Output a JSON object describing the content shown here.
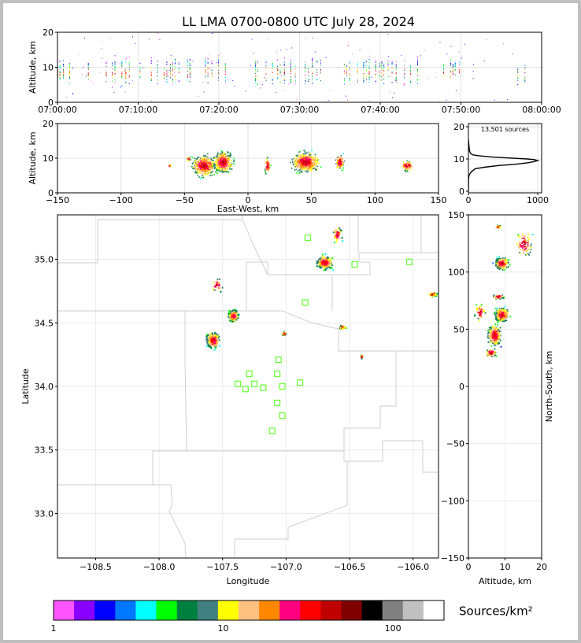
{
  "title": "LL LMA 0700-0800 UTC July 28, 2024",
  "colors": {
    "station": "#66ff33",
    "county": "#cccccc",
    "axis": "#000000",
    "grid": "#e6e6e6"
  },
  "chart_data": [
    {
      "type": "scatter",
      "panel": "time-altitude",
      "title": "LL LMA 0700-0800 UTC July 28, 2024",
      "xlabel": "",
      "ylabel": "Altitude, km",
      "xlim": [
        "07:00:00",
        "08:00:00"
      ],
      "ylim": [
        0,
        20
      ],
      "xticks": [
        "07:00:00",
        "07:10:00",
        "07:20:00",
        "07:30:00",
        "07:40:00",
        "07:50:00",
        "08:00:00"
      ],
      "yticks": [
        0,
        10,
        20
      ],
      "clusters": [
        {
          "t": [
            0,
            4
          ],
          "alt": [
            5,
            12
          ]
        },
        {
          "t": [
            6,
            15
          ],
          "alt": [
            4,
            13
          ]
        },
        {
          "t": [
            15,
            21
          ],
          "alt": [
            5,
            13
          ]
        },
        {
          "t": [
            24.5,
            33
          ],
          "alt": [
            4,
            13
          ]
        },
        {
          "t": [
            35.5,
            45.5
          ],
          "alt": [
            4,
            13
          ]
        },
        {
          "t": [
            47.8,
            50.5
          ],
          "alt": [
            7,
            12
          ]
        },
        {
          "t": [
            57,
            58
          ],
          "alt": [
            4,
            11
          ]
        }
      ]
    },
    {
      "type": "scatter",
      "panel": "east-west-altitude",
      "xlabel": "East-West, km",
      "ylabel": "Altitude, km",
      "xlim": [
        -150,
        150
      ],
      "ylim": [
        0,
        20
      ],
      "xticks": [
        -150,
        -100,
        -50,
        0,
        50,
        100,
        150
      ],
      "yticks": [
        0,
        10,
        20
      ],
      "clusters": [
        {
          "x": -35,
          "alt": 8,
          "dx": 13,
          "dz": 4,
          "n": 450
        },
        {
          "x": -20,
          "alt": 9,
          "dx": 10,
          "dz": 4,
          "n": 500
        },
        {
          "x": 45,
          "alt": 9,
          "dx": 15,
          "dz": 4,
          "n": 500
        },
        {
          "x": 72,
          "alt": 9,
          "dx": 5,
          "dz": 3,
          "n": 100
        },
        {
          "x": 15,
          "alt": 8,
          "dx": 3,
          "dz": 3,
          "n": 70
        },
        {
          "x": 125,
          "alt": 8,
          "dx": 7,
          "dz": 2,
          "n": 90
        },
        {
          "x": -47,
          "alt": 10,
          "dx": 2,
          "dz": 1,
          "n": 20
        },
        {
          "x": -62,
          "alt": 8,
          "dx": 2,
          "dz": 0.5,
          "n": 10
        }
      ]
    },
    {
      "type": "line",
      "panel": "altitude-histogram",
      "annotation": "13,501 sources",
      "xlim": [
        0,
        1000
      ],
      "ylim": [
        0,
        20
      ],
      "xticks": [
        0,
        1000
      ],
      "yticks": [
        0,
        10,
        20
      ],
      "x": [
        0,
        2,
        10,
        40,
        100,
        250,
        450,
        650,
        850,
        950,
        1000,
        950,
        850,
        600,
        350,
        150,
        60,
        30,
        15,
        8,
        0
      ],
      "y": [
        0,
        4,
        5,
        6,
        7,
        7.5,
        8,
        8.3,
        8.8,
        9.2,
        9.5,
        9.8,
        10,
        10.3,
        10.6,
        11,
        11.3,
        11.8,
        12.5,
        14,
        16
      ]
    },
    {
      "type": "scatter",
      "panel": "plan-view",
      "xlabel": "Longitude",
      "ylabel": "Latitude",
      "xlim": [
        -108.8,
        -105.8
      ],
      "ylim": [
        32.65,
        35.35
      ],
      "xticks": [
        -108.5,
        -108.0,
        -107.5,
        -107.0,
        -106.5,
        -106.0
      ],
      "xtick_labels": [
        "−108.5",
        "−108.0",
        "−107.5",
        "−107.0",
        "−106.5",
        "−106.0"
      ],
      "yticks": [
        33.0,
        33.5,
        34.0,
        34.5,
        35.0
      ],
      "ytick_labels": [
        "33.0",
        "33.5",
        "34.0",
        "34.5",
        "35.0"
      ],
      "clusters": [
        {
          "lon": -107.42,
          "lat": 34.56,
          "dx": 0.05,
          "dy": 0.06,
          "n": 350
        },
        {
          "lon": -107.58,
          "lat": 34.37,
          "dx": 0.07,
          "dy": 0.08,
          "n": 300
        },
        {
          "lon": -106.7,
          "lat": 34.98,
          "dx": 0.08,
          "dy": 0.07,
          "n": 320
        },
        {
          "lon": -107.02,
          "lat": 34.42,
          "dx": 0.02,
          "dy": 0.02,
          "n": 40
        },
        {
          "lon": -106.56,
          "lat": 34.47,
          "dx": 0.03,
          "dy": 0.02,
          "n": 60
        },
        {
          "lon": -106.41,
          "lat": 34.24,
          "dx": 0.01,
          "dy": 0.02,
          "n": 30
        },
        {
          "lon": -105.85,
          "lat": 34.73,
          "dx": 0.05,
          "dy": 0.02,
          "n": 60
        },
        {
          "lon": -106.6,
          "lat": 35.2,
          "dx": 0.05,
          "dy": 0.08,
          "n": 40
        },
        {
          "lon": -107.55,
          "lat": 34.8,
          "dx": 0.06,
          "dy": 0.08,
          "n": 25
        }
      ],
      "stations": [
        {
          "lon": -106.83,
          "lat": 35.17
        },
        {
          "lon": -106.46,
          "lat": 34.96
        },
        {
          "lon": -106.03,
          "lat": 34.98
        },
        {
          "lon": -106.85,
          "lat": 34.66
        },
        {
          "lon": -107.06,
          "lat": 34.21
        },
        {
          "lon": -107.29,
          "lat": 34.1
        },
        {
          "lon": -107.07,
          "lat": 34.1
        },
        {
          "lon": -107.38,
          "lat": 34.02
        },
        {
          "lon": -107.25,
          "lat": 34.02
        },
        {
          "lon": -107.32,
          "lat": 33.98
        },
        {
          "lon": -107.18,
          "lat": 33.99
        },
        {
          "lon": -107.03,
          "lat": 34.0
        },
        {
          "lon": -106.89,
          "lat": 34.03
        },
        {
          "lon": -107.07,
          "lat": 33.87
        },
        {
          "lon": -107.03,
          "lat": 33.77
        },
        {
          "lon": -107.11,
          "lat": 33.65
        }
      ]
    },
    {
      "type": "scatter",
      "panel": "altitude-north-south",
      "xlabel": "Altitude, km",
      "ylabel": "North-South, km",
      "xlim": [
        0,
        20
      ],
      "ylim": [
        -150,
        150
      ],
      "xticks": [
        0,
        10,
        20
      ],
      "yticks": [
        -150,
        -100,
        -50,
        0,
        50,
        100,
        150
      ],
      "clusters": [
        {
          "alt": 9,
          "ns": 63,
          "dx": 2.5,
          "dy": 8,
          "n": 350
        },
        {
          "alt": 7,
          "ns": 45,
          "dx": 2.5,
          "dy": 12,
          "n": 300
        },
        {
          "alt": 9,
          "ns": 108,
          "dx": 2.5,
          "dy": 7,
          "n": 320
        },
        {
          "alt": 8,
          "ns": 79,
          "dx": 2,
          "dy": 3,
          "n": 60
        },
        {
          "alt": 6,
          "ns": 30,
          "dx": 2,
          "dy": 5,
          "n": 60
        },
        {
          "alt": 15,
          "ns": 125,
          "dx": 3,
          "dy": 15,
          "n": 80
        },
        {
          "alt": 3,
          "ns": 65,
          "dx": 2,
          "dy": 10,
          "n": 50
        },
        {
          "alt": 8,
          "ns": 140,
          "dx": 1,
          "dy": 2,
          "n": 15
        }
      ]
    },
    {
      "type": "colorbar",
      "panel": "colorbar",
      "label": "Sources/km²",
      "scale": "log",
      "range": [
        1,
        200
      ],
      "ticks": [
        1,
        10,
        100
      ],
      "tick_labels": [
        "1",
        "10",
        "100"
      ],
      "colors": [
        "#ff55ff",
        "#8800ff",
        "#0000ff",
        "#0077ff",
        "#00ffff",
        "#00ff00",
        "#008040",
        "#408080",
        "#ffff00",
        "#ffc080",
        "#ff8800",
        "#ff0080",
        "#ff0000",
        "#c00000",
        "#800000",
        "#000000",
        "#808080",
        "#c0c0c0",
        "#ffffff"
      ]
    }
  ]
}
